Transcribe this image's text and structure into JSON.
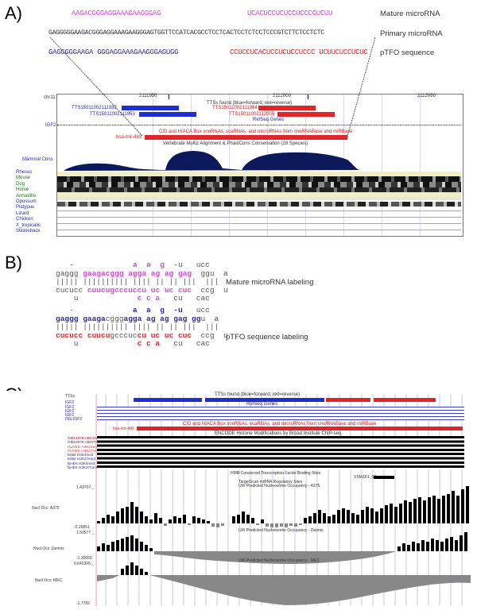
{
  "panels": {
    "a": "A)",
    "b": "B)",
    "c": "C)"
  },
  "panelA": {
    "mature_seq_left": "AAGACGGGAGGAAAGAAGGGAG",
    "mature_seq_right": "UCACUCCUCUCCUCCCGUCUU",
    "mature_label": "Mature microRNA",
    "primary_seq": "GAGGGGGAAGACGGGAGGAAAGAAGGGAGTGGTTCCATCACGCCTCCTCACTCCTCTCCTCCCGTCTTCTCCTCTC",
    "primary_label": "Primary microRNA",
    "ptfo_seq_left": "GAGGGGGAAGA GGGAGGAAAGAAGGGAGUGG",
    "ptfo_seq_right": "CCUCCUCACUCCUCUCCUCCC UCUUCUCCUCUC",
    "ptfo_label": "pTFO sequence",
    "browser": {
      "chrom": "chr11:",
      "ticks": [
        "2111950",
        "2112000",
        "2112050"
      ],
      "track_header": "TTSs found (blue=forward; red=reverse)",
      "tts1": "TTS15011002111932",
      "tts2": "TTS15011002111953",
      "tts3": "TTS15011002111984",
      "tts4": "TTS15011002112005",
      "refseq": "RefSeq Genes",
      "gene": "IGF2",
      "snorna": "C/D and H/ACA Box snoRNAs, scaRNAs, and microRNAs from snoRNABase and miRBase",
      "mir": "hsa-mir-483",
      "cons_title": "Vertebrate Multiz Alignment & PhastCons Conservation (28 Species)",
      "mammal": "Mammal Cons",
      "species": [
        "Rhesus",
        "Mouse",
        "Dog",
        "Horse",
        "Armadillo",
        "Opossum",
        "Platypus",
        "Lizard",
        "Chicken",
        "X_tropicalis",
        "Stickleback"
      ]
    }
  },
  "panelB": {
    "mature_label": "Mature microRNA labeling",
    "ptfo_label": "pTFO sequence labeling"
  },
  "panelC": {
    "tts_header": "TTSs found (blue=forward; red=reverse)",
    "refseq": "RefSeq Genes",
    "left_labels": [
      "TTSs",
      "IGF2",
      "IGF2",
      "IGF2",
      "IGF2",
      "INS-IGF2"
    ],
    "mir_label": "hsa-mir-483",
    "snorna": "C/D and H/ACA Box snoRNAs, scaRNAs, and microRNAs from snoRNABase and miRBase",
    "encode": "ENCODE Histone Modifications by Broad Institute ChIP-seq",
    "histone_labels": [
      "GM12878 H3K4me3",
      "GM12878 H3K27me3",
      "HUVEC H3K4me3",
      "HUVEC H3K27me3",
      "K562 H3K4me3",
      "K562 H3K27me3",
      "NHEK H3K4me3",
      "NHEK H3K27me3"
    ],
    "tfbs": "HMR Conserved Transcription Factor Binding Sites",
    "vsmzf": "VSMZF1_02",
    "tfbs2": "TargetScan miRNA Regulatory Sites",
    "a375_title": "UW Predicted Nucleosome Occupancy - A375",
    "a375_label": "Nucl Occ: A375",
    "a375_max": "1.43707 _",
    "a375_min": "-0.26851",
    "dennis_title": "UW Predicted Nucleosome Occupancy - Dennis",
    "dennis_label": "Nucl Occ: Dennis",
    "dennis_max": "1.59577 _",
    "mec_title": "UW Predicted Nucleosome Occupancy - MEC",
    "mec_label": "Nucl Occ: MEC",
    "mec_max": "0.642365 _",
    "mec_min": "-1.30055",
    "bottom_min": "-1.7782"
  },
  "colors": {
    "pink": "#d24bd2",
    "blue": "#2a2aa8",
    "red": "#e0262b",
    "navy": "#0c1a5c"
  }
}
